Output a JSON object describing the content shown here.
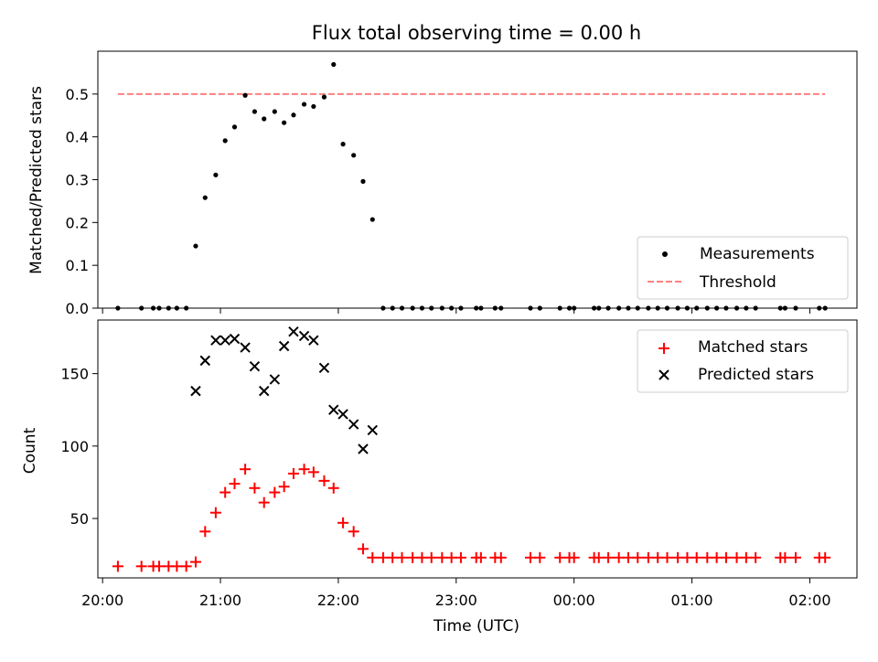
{
  "chart_data": {
    "type": "scatter",
    "title": "Flux total observing time = 0.00 h",
    "xlabel": "Time (UTC)",
    "x_tick_labels": [
      "20:00",
      "21:00",
      "22:00",
      "23:00",
      "00:00",
      "01:00",
      "02:00"
    ],
    "x_tick_hours": [
      20,
      21,
      22,
      23,
      24,
      25,
      26
    ],
    "xlim": [
      19.96,
      26.4
    ],
    "x_hours": [
      20.13,
      20.33,
      20.43,
      20.48,
      20.56,
      20.63,
      20.71,
      20.79,
      20.87,
      20.96,
      21.04,
      21.12,
      21.21,
      21.29,
      21.37,
      21.46,
      21.54,
      21.62,
      21.71,
      21.79,
      21.88,
      21.96,
      22.04,
      22.13,
      22.21,
      22.29,
      22.38,
      22.46,
      22.54,
      22.63,
      22.71,
      22.79,
      22.88,
      22.96,
      23.04,
      23.17,
      23.21,
      23.33,
      23.38,
      23.63,
      23.71,
      23.88,
      23.96,
      24.0,
      24.17,
      24.21,
      24.29,
      24.38,
      24.46,
      24.54,
      24.63,
      24.71,
      24.79,
      24.88,
      24.96,
      25.04,
      25.13,
      25.21,
      25.29,
      25.38,
      25.46,
      25.54,
      25.75,
      25.79,
      25.88,
      26.08,
      26.13
    ],
    "panels": [
      {
        "name": "top",
        "ylabel": "Matched/Predicted stars",
        "ylim": [
          0,
          0.6
        ],
        "y_ticks": [
          0.0,
          0.1,
          0.2,
          0.3,
          0.4,
          0.5
        ],
        "y_tick_labels": [
          "0.0",
          "0.1",
          "0.2",
          "0.3",
          "0.4",
          "0.5"
        ],
        "legend_position": "lower right",
        "series": [
          {
            "name": "Measurements",
            "marker": "dot",
            "color": "#000000",
            "values": [
              0,
              0,
              0,
              0,
              0,
              0,
              0,
              0.145,
              0.258,
              0.311,
              0.391,
              0.423,
              0.497,
              0.459,
              0.442,
              0.459,
              0.433,
              0.451,
              0.476,
              0.471,
              0.493,
              0.569,
              0.383,
              0.357,
              0.296,
              0.207,
              0,
              0,
              0,
              0,
              0,
              0,
              0,
              0,
              0,
              0,
              0,
              0,
              0,
              0,
              0,
              0,
              0,
              0,
              0,
              0,
              0,
              0,
              0,
              0,
              0,
              0,
              0,
              0,
              0,
              0,
              0,
              0,
              0,
              0,
              0,
              0,
              0,
              0,
              0,
              0,
              0
            ]
          },
          {
            "name": "Threshold",
            "marker": "dashed-line",
            "color": "#ff7f7f",
            "value": 0.5,
            "x_range": [
              20.13,
              26.13
            ]
          }
        ]
      },
      {
        "name": "bottom",
        "ylabel": "Count",
        "ylim": [
          9,
          187
        ],
        "y_ticks": [
          50,
          100,
          150
        ],
        "y_tick_labels": [
          "50",
          "100",
          "150"
        ],
        "legend_position": "upper right",
        "series": [
          {
            "name": "Matched stars",
            "marker": "plus",
            "color": "#ff0000",
            "values": [
              17,
              17,
              17,
              17,
              17,
              17,
              17,
              20,
              41,
              54,
              68,
              74,
              84,
              71,
              61,
              68,
              72,
              81,
              84,
              82,
              76,
              71,
              47,
              41,
              29,
              23,
              23,
              23,
              23,
              23,
              23,
              23,
              23,
              23,
              23,
              23,
              23,
              23,
              23,
              23,
              23,
              23,
              23,
              23,
              23,
              23,
              23,
              23,
              23,
              23,
              23,
              23,
              23,
              23,
              23,
              23,
              23,
              23,
              23,
              23,
              23,
              23,
              23,
              23,
              23,
              23,
              23
            ]
          },
          {
            "name": "Predicted stars",
            "marker": "x",
            "color": "#000000",
            "x_hours": [
              20.79,
              20.87,
              20.96,
              21.04,
              21.12,
              21.21,
              21.29,
              21.37,
              21.46,
              21.54,
              21.62,
              21.71,
              21.79,
              21.88,
              21.96,
              22.04,
              22.13,
              22.21,
              22.29
            ],
            "values": [
              138,
              159,
              173,
              173,
              174,
              168,
              155,
              138,
              146,
              169,
              179,
              176,
              173,
              154,
              125,
              122,
              115,
              98,
              111
            ]
          }
        ]
      }
    ]
  }
}
